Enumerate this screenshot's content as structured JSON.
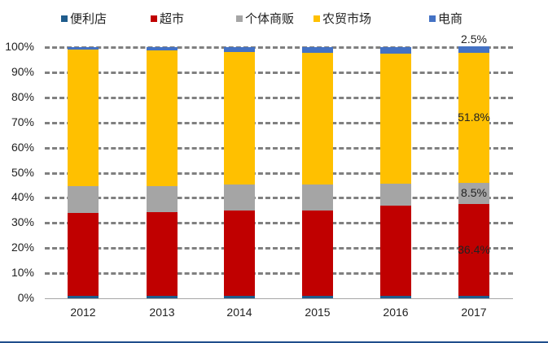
{
  "chart_data": {
    "type": "bar",
    "stacked": true,
    "title": "",
    "xlabel": "",
    "ylabel": "",
    "ylim": [
      0,
      100
    ],
    "y_ticks": [
      "0%",
      "10%",
      "20%",
      "30%",
      "40%",
      "50%",
      "60%",
      "70%",
      "80%",
      "90%",
      "100%"
    ],
    "grid": true,
    "legend_position": "top",
    "categories": [
      "2012",
      "2013",
      "2014",
      "2015",
      "2016",
      "2017"
    ],
    "series": [
      {
        "name": "便利店",
        "color": "#1f5c8c",
        "values": [
          1.0,
          1.0,
          1.0,
          1.0,
          1.0,
          1.0
        ]
      },
      {
        "name": "超市",
        "color": "#c00000",
        "values": [
          33.0,
          33.3,
          34.0,
          34.0,
          35.9,
          36.4
        ]
      },
      {
        "name": "个体商贩",
        "color": "#a5a5a5",
        "values": [
          10.7,
          10.4,
          10.3,
          10.3,
          8.7,
          8.5
        ]
      },
      {
        "name": "农贸市场",
        "color": "#ffc000",
        "values": [
          54.2,
          53.9,
          52.7,
          52.3,
          51.9,
          51.8
        ]
      },
      {
        "name": "电商",
        "color": "#4472c4",
        "values": [
          1.1,
          1.4,
          2.0,
          2.4,
          2.5,
          2.5
        ]
      }
    ],
    "data_labels": [
      {
        "category": "2017",
        "series": "超市",
        "text": "36.4%"
      },
      {
        "category": "2017",
        "series": "个体商贩",
        "text": "8.5%"
      },
      {
        "category": "2017",
        "series": "农贸市场",
        "text": "51.8%"
      },
      {
        "category": "2017",
        "series": "电商",
        "text": "2.5%"
      }
    ]
  }
}
